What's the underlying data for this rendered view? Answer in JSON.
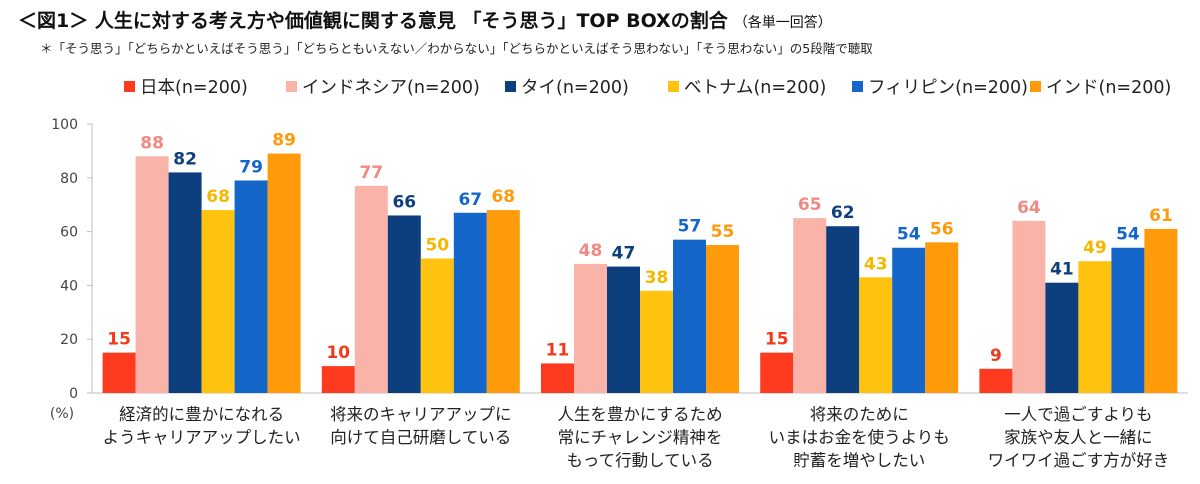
{
  "header": {
    "title": "＜図1＞ 人生に対する考え方や価値観に関する意見 「そう思う」TOP BOXの割合",
    "title_note": "（各単一回答）",
    "subtitle": "＊「そう思う」「どちらかといえばそう思う」「どちらともいえない／わからない」「どちらかといえばそう思わない」「そう思わない」の5段階で聴取"
  },
  "chart_data": {
    "type": "bar",
    "ylabel": "(%)",
    "ylim": [
      0,
      100
    ],
    "yticks": [
      "0",
      "20",
      "40",
      "60",
      "80",
      "100"
    ],
    "legend_position": "top",
    "grid": false,
    "categories": [
      [
        "経済的に豊かになれる",
        "ようキャリアアップしたい"
      ],
      [
        "将来のキャリアアップに",
        "向けて自己研磨している"
      ],
      [
        "人生を豊かにするため",
        "常にチャレンジ精神を",
        "もって行動している"
      ],
      [
        "将来のために",
        "いまはお金を使うよりも",
        "貯蓄を増やしたい"
      ],
      [
        "一人で過ごすよりも",
        "家族や友人と一緒に",
        "ワイワイ過ごす方が好き"
      ]
    ],
    "series": [
      {
        "name": "日本(n=200)",
        "color": "#FF3B1F",
        "label_color": "#F03A1C",
        "values": [
          15,
          10,
          11,
          15,
          9
        ]
      },
      {
        "name": "インドネシア(n=200)",
        "color": "#FAB3A8",
        "label_color": "#F08A80",
        "values": [
          88,
          77,
          48,
          65,
          64
        ]
      },
      {
        "name": "タイ(n=200)",
        "color": "#0D3F7E",
        "label_color": "#0D3F7E",
        "values": [
          82,
          66,
          47,
          62,
          41
        ]
      },
      {
        "name": "ベトナム(n=200)",
        "color": "#FFC20E",
        "label_color": "#F5B800",
        "values": [
          68,
          50,
          38,
          43,
          49
        ]
      },
      {
        "name": "フィリピン(n=200)",
        "color": "#1467C8",
        "label_color": "#1467C8",
        "values": [
          79,
          67,
          57,
          54,
          54
        ]
      },
      {
        "name": "インド(n=200)",
        "color": "#FF9A0A",
        "label_color": "#FF9A0A",
        "values": [
          89,
          68,
          55,
          56,
          61
        ]
      }
    ]
  }
}
